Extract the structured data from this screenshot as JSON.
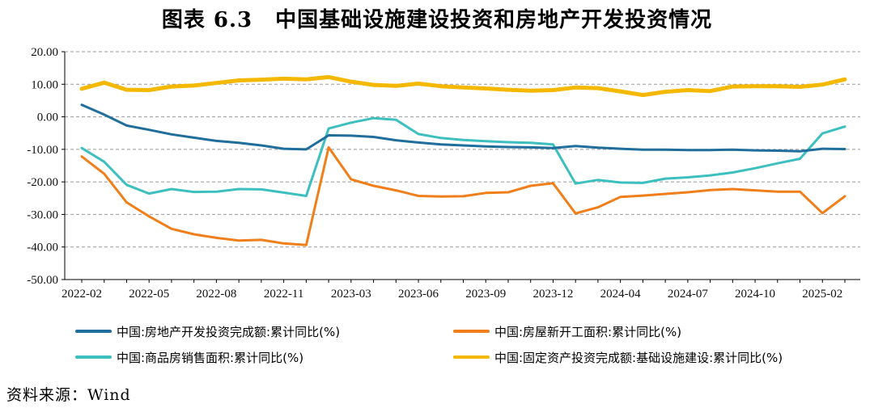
{
  "figure": {
    "title_num": "图表 6.3",
    "title_text": "中国基础设施建设投资和房地产开发投资情况",
    "source": "资料来源：Wind"
  },
  "chart_data": {
    "type": "line",
    "x": [
      "2022-02",
      "2022-03",
      "2022-04",
      "2022-05",
      "2022-06",
      "2022-07",
      "2022-08",
      "2022-09",
      "2022-10",
      "2022-11",
      "2022-12",
      "2023-02",
      "2023-03",
      "2023-04",
      "2023-05",
      "2023-06",
      "2023-07",
      "2023-08",
      "2023-09",
      "2023-10",
      "2023-11",
      "2023-12",
      "2024-02",
      "2024-03",
      "2024-04",
      "2024-05",
      "2024-06",
      "2024-07",
      "2024-08",
      "2024-09",
      "2024-10",
      "2024-11",
      "2024-12",
      "2025-02",
      "2025-03"
    ],
    "x_tick_labels": [
      "2022-02",
      "2022-05",
      "2022-08",
      "2022-11",
      "2023-03",
      "2023-06",
      "2023-09",
      "2023-12",
      "2024-04",
      "2024-07",
      "2024-10",
      "2025-02"
    ],
    "y_tick_labels": [
      "20.00",
      "10.00",
      "0.00",
      "-10.00",
      "-20.00",
      "-30.00",
      "-40.00",
      "-50.00"
    ],
    "ylim": [
      -50,
      20
    ],
    "grid": "horizontal-dashed",
    "legend_position": "bottom",
    "series": [
      {
        "name": "中国:房地产开发投资完成额:累计同比(%)",
        "color": "#1f6e9c",
        "values": [
          3.7,
          0.7,
          -2.7,
          -4.0,
          -5.4,
          -6.4,
          -7.4,
          -8.0,
          -8.8,
          -9.8,
          -10.0,
          -5.7,
          -5.8,
          -6.2,
          -7.2,
          -7.9,
          -8.5,
          -8.8,
          -9.1,
          -9.3,
          -9.4,
          -9.6,
          -9.0,
          -9.5,
          -9.8,
          -10.1,
          -10.1,
          -10.2,
          -10.2,
          -10.1,
          -10.3,
          -10.4,
          -10.6,
          -9.8,
          -9.9
        ]
      },
      {
        "name": "中国:房屋新开工面积:累计同比(%)",
        "color": "#f07f1b",
        "values": [
          -12.2,
          -17.5,
          -26.3,
          -30.6,
          -34.4,
          -36.1,
          -37.2,
          -38.0,
          -37.8,
          -38.9,
          -39.4,
          -9.4,
          -19.2,
          -21.2,
          -22.6,
          -24.3,
          -24.5,
          -24.4,
          -23.4,
          -23.2,
          -21.2,
          -20.4,
          -29.7,
          -27.8,
          -24.6,
          -24.2,
          -23.7,
          -23.2,
          -22.5,
          -22.2,
          -22.6,
          -23.0,
          -23.0,
          -29.6,
          -24.4
        ]
      },
      {
        "name": "中国:商品房销售面积:累计同比(%)",
        "color": "#3dbfbf",
        "values": [
          -9.6,
          -13.8,
          -20.9,
          -23.6,
          -22.2,
          -23.1,
          -23.0,
          -22.2,
          -22.3,
          -23.3,
          -24.3,
          -3.6,
          -1.8,
          -0.4,
          -0.9,
          -5.3,
          -6.5,
          -7.1,
          -7.5,
          -7.8,
          -8.0,
          -8.5,
          -20.5,
          -19.4,
          -20.2,
          -20.3,
          -19.0,
          -18.6,
          -18.0,
          -17.1,
          -15.8,
          -14.3,
          -12.9,
          -5.1,
          -3.0
        ]
      },
      {
        "name": "中国:固定资产投资完成额:基础设施建设:累计同比(%)",
        "color": "#f5b800",
        "values": [
          8.6,
          10.5,
          8.3,
          8.2,
          9.3,
          9.6,
          10.4,
          11.2,
          11.4,
          11.7,
          11.5,
          12.2,
          10.8,
          9.8,
          9.5,
          10.2,
          9.4,
          9.0,
          8.7,
          8.3,
          8.0,
          8.2,
          9.0,
          8.8,
          7.8,
          6.7,
          7.7,
          8.2,
          7.9,
          9.3,
          9.4,
          9.4,
          9.2,
          9.9,
          11.5
        ]
      }
    ]
  }
}
